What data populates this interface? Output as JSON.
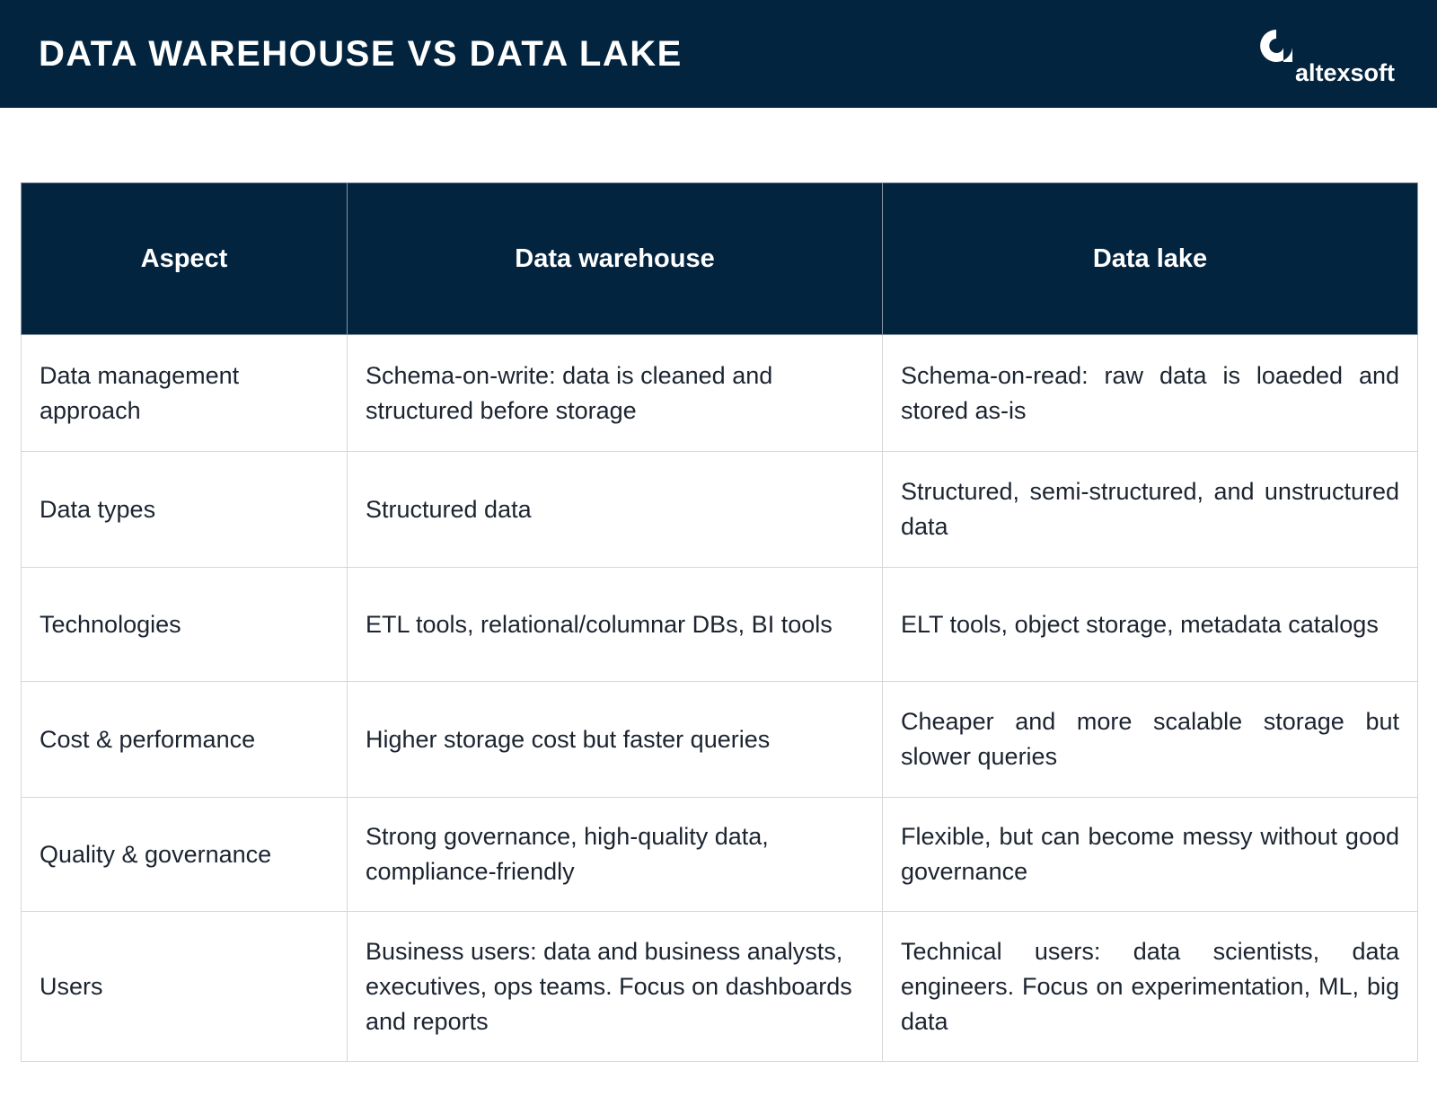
{
  "header": {
    "title": "DATA WAREHOUSE VS DATA LAKE",
    "logo": "altexsoft"
  },
  "table": {
    "columns": [
      "Aspect",
      "Data warehouse",
      "Data lake"
    ],
    "rows": [
      [
        "Data management approach",
        "Schema-on-write: data is cleaned and structured before storage",
        "Schema-on-read: raw data is loaeded and stored as-is"
      ],
      [
        "Data types",
        "Structured data",
        "Structured, semi-structured, and unstructured data"
      ],
      [
        "Technologies",
        "ETL tools, relational/columnar DBs, BI tools",
        "ELT tools, object storage, metadata catalogs"
      ],
      [
        "Cost & performance",
        "Higher storage cost but faster queries",
        "Cheaper and more scalable storage but slower queries"
      ],
      [
        "Quality & governance",
        "Strong governance, high-quality data, compliance-friendly",
        "Flexible, but can become messy without good governance"
      ],
      [
        "Users",
        "Business users: data and business analysts, executives, ops teams. Focus on dashboards and reports",
        "Technical users: data scientists, data engineers. Focus on experimentation, ML, big data"
      ]
    ]
  }
}
